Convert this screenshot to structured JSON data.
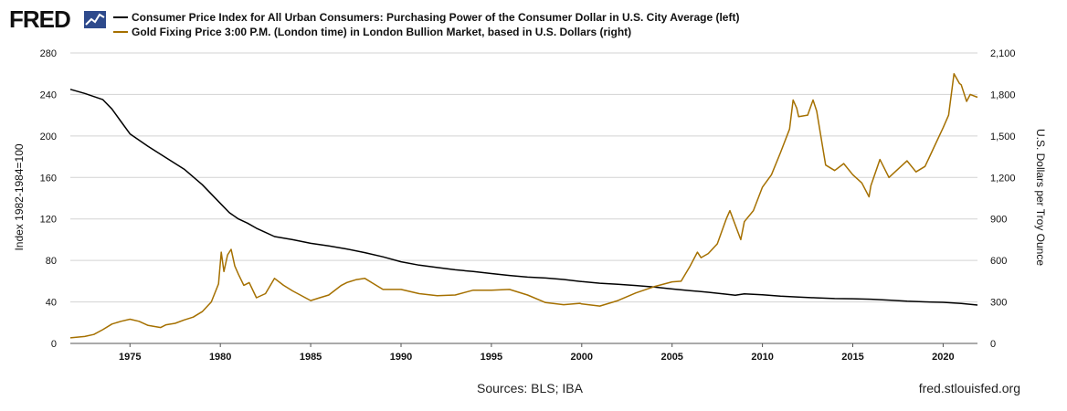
{
  "logo": {
    "text": "FRED"
  },
  "footer": {
    "sources": "Sources: BLS; IBA",
    "site": "fred.stlouisfed.org"
  },
  "colors": {
    "cpi": "#000000",
    "gold": "#a57000",
    "grid": "#d3d3d3",
    "logo_accent": "#2e4a8c"
  },
  "chart_data": {
    "type": "line",
    "title": "",
    "xlabel": "",
    "xlim": [
      1971.7,
      2021.9
    ],
    "x_ticks": [
      1975,
      1980,
      1985,
      1990,
      1995,
      2000,
      2005,
      2010,
      2015,
      2020
    ],
    "x_tick_labels": [
      "1975",
      "1980",
      "1985",
      "1990",
      "1995",
      "2000",
      "2005",
      "2010",
      "2015",
      "2020"
    ],
    "grid": true,
    "legend": "top-left",
    "axes": {
      "left": {
        "label": "Index 1982-1984=100",
        "ylim": [
          0,
          280
        ],
        "ticks": [
          0,
          40,
          80,
          120,
          160,
          200,
          240,
          280
        ],
        "tick_labels": [
          "0",
          "40",
          "80",
          "120",
          "160",
          "200",
          "240",
          "280"
        ]
      },
      "right": {
        "label": "U.S. Dollars per Troy Ounce",
        "ylim": [
          0,
          2100
        ],
        "ticks": [
          0,
          300,
          600,
          900,
          1200,
          1500,
          1800,
          2100
        ],
        "tick_labels": [
          "0",
          "300",
          "600",
          "900",
          "1,200",
          "1,500",
          "1,800",
          "2,100"
        ]
      }
    },
    "series": [
      {
        "name": "Consumer Price Index for All Urban Consumers: Purchasing Power of the Consumer Dollar in U.S. City Average (left)",
        "axis": "left",
        "color": "#000000",
        "x": [
          1971.7,
          1972.5,
          1973.0,
          1973.5,
          1974.0,
          1974.5,
          1975.0,
          1976.0,
          1977.0,
          1978.0,
          1979.0,
          1980.0,
          1980.5,
          1981.0,
          1981.5,
          1982.0,
          1983.0,
          1984.0,
          1985.0,
          1986.0,
          1987.0,
          1988.0,
          1989.0,
          1990.0,
          1991.0,
          1992.0,
          1993.0,
          1994.0,
          1995.0,
          1996.0,
          1997.0,
          1998.0,
          1999.0,
          2000.0,
          2001.0,
          2002.0,
          2003.0,
          2004.0,
          2005.0,
          2006.0,
          2007.0,
          2008.0,
          2008.5,
          2009.0,
          2010.0,
          2011.0,
          2012.0,
          2013.0,
          2014.0,
          2015.0,
          2016.0,
          2017.0,
          2018.0,
          2019.0,
          2020.0,
          2021.0,
          2021.9
        ],
        "y": [
          245,
          241,
          238,
          235,
          226,
          214,
          202,
          190,
          179,
          168,
          153,
          135,
          126,
          120,
          116,
          111,
          103,
          100,
          96.5,
          94,
          91,
          87.5,
          83.5,
          78.7,
          75.5,
          73.2,
          71,
          69.3,
          67.4,
          65.5,
          63.9,
          63,
          61.6,
          59.6,
          58,
          57,
          55.8,
          54.3,
          52.5,
          50.9,
          49.3,
          47.5,
          46.5,
          47.7,
          46.9,
          45.5,
          44.6,
          43.9,
          43.2,
          43.1,
          42.6,
          41.7,
          40.7,
          40.1,
          39.6,
          38.5,
          37
        ]
      },
      {
        "name": "Gold Fixing Price 3:00 P.M. (London time) in London Bullion Market, based in U.S. Dollars (right)",
        "axis": "right",
        "color": "#a57000",
        "x": [
          1971.7,
          1972.5,
          1973.0,
          1973.5,
          1974.0,
          1974.5,
          1975.0,
          1975.5,
          1976.0,
          1976.7,
          1977.0,
          1977.5,
          1978.0,
          1978.5,
          1979.0,
          1979.5,
          1979.9,
          1980.05,
          1980.2,
          1980.4,
          1980.6,
          1980.8,
          1981.0,
          1981.3,
          1981.6,
          1982.0,
          1982.5,
          1983.0,
          1983.5,
          1984.0,
          1985.0,
          1985.5,
          1986.0,
          1986.7,
          1987.0,
          1987.5,
          1988.0,
          1988.5,
          1989.0,
          1990.0,
          1991.0,
          1992.0,
          1993.0,
          1994.0,
          1995.0,
          1996.0,
          1997.0,
          1998.0,
          1999.0,
          1999.9,
          2000.0,
          2001.0,
          2002.0,
          2003.0,
          2004.0,
          2005.0,
          2005.5,
          2006.0,
          2006.4,
          2006.6,
          2007.0,
          2007.5,
          2008.0,
          2008.2,
          2008.8,
          2009.0,
          2009.5,
          2010.0,
          2010.5,
          2011.0,
          2011.5,
          2011.7,
          2011.9,
          2012.0,
          2012.5,
          2012.8,
          2013.0,
          2013.5,
          2014.0,
          2014.5,
          2015.0,
          2015.5,
          2015.9,
          2016.0,
          2016.5,
          2017.0,
          2017.5,
          2018.0,
          2018.5,
          2019.0,
          2019.5,
          2020.0,
          2020.3,
          2020.6,
          2020.9,
          2021.0,
          2021.3,
          2021.5,
          2021.9
        ],
        "y": [
          40,
          50,
          65,
          100,
          140,
          160,
          175,
          160,
          130,
          115,
          135,
          145,
          170,
          190,
          230,
          300,
          430,
          660,
          520,
          640,
          680,
          560,
          500,
          420,
          440,
          330,
          360,
          470,
          420,
          380,
          310,
          330,
          350,
          420,
          440,
          460,
          470,
          430,
          390,
          390,
          360,
          345,
          350,
          385,
          385,
          390,
          350,
          295,
          280,
          290,
          285,
          270,
          310,
          365,
          410,
          445,
          450,
          560,
          660,
          620,
          650,
          720,
          900,
          960,
          750,
          880,
          960,
          1130,
          1220,
          1380,
          1550,
          1760,
          1700,
          1640,
          1650,
          1760,
          1680,
          1290,
          1250,
          1300,
          1220,
          1160,
          1060,
          1140,
          1330,
          1200,
          1260,
          1320,
          1240,
          1280,
          1420,
          1560,
          1650,
          1950,
          1880,
          1870,
          1750,
          1800,
          1780
        ]
      }
    ]
  }
}
